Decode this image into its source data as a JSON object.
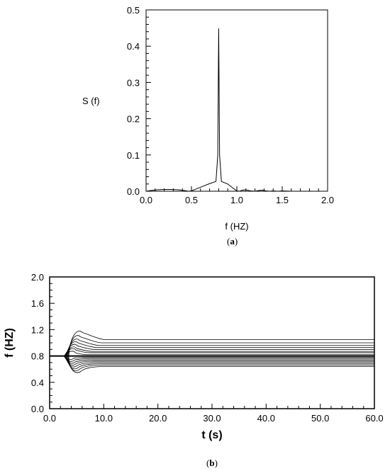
{
  "chart_data": [
    {
      "type": "line",
      "panel": "a",
      "caption_letter": "a",
      "ylabel": "S (f)",
      "xlabel": "f (HZ)",
      "xlim": [
        0.0,
        2.0
      ],
      "ylim": [
        0.0,
        0.5
      ],
      "x_ticks": [
        "0.0",
        "0.5",
        "1.0",
        "1.5",
        "2.0"
      ],
      "y_ticks": [
        "0.0",
        "0.1",
        "0.2",
        "0.3",
        "0.4",
        "0.5"
      ],
      "grid": false,
      "series": [
        {
          "x": [
            0.0,
            0.05,
            0.12,
            0.2,
            0.28,
            0.36,
            0.42,
            0.47,
            0.5,
            0.55,
            0.62,
            0.7,
            0.77,
            0.79,
            0.8,
            0.81,
            0.83,
            0.9,
            0.95,
            1.0,
            1.03,
            1.06,
            1.1,
            1.15,
            1.2,
            1.24,
            1.28,
            1.32,
            1.36,
            1.4,
            1.45,
            1.5,
            1.6,
            1.7,
            1.8,
            1.9,
            2.0
          ],
          "y": [
            0.0,
            0.002,
            0.004,
            0.005,
            0.005,
            0.004,
            0.002,
            0.0,
            0.001,
            0.006,
            0.013,
            0.021,
            0.027,
            0.1,
            0.449,
            0.1,
            0.027,
            0.02,
            0.01,
            0.001,
            0.0,
            0.003,
            0.004,
            0.001,
            0.0,
            0.002,
            0.003,
            0.001,
            0.0,
            0.001,
            0.0,
            0.001,
            0.0,
            0.0,
            0.0,
            0.0,
            0.0
          ]
        }
      ]
    },
    {
      "type": "contour",
      "panel": "b",
      "caption_letter": "b",
      "ylabel": "f (HZ)",
      "xlabel": "t (s)",
      "xlim": [
        0.0,
        60.0
      ],
      "ylim": [
        0.0,
        2.0
      ],
      "x_ticks": [
        "0.0",
        "10.0",
        "20.0",
        "30.0",
        "40.0",
        "50.0",
        "60.0"
      ],
      "y_ticks": [
        "0.0",
        "0.4",
        "0.8",
        "1.2",
        "1.6",
        "2.0"
      ],
      "reference_line_f": 0.8,
      "contour_start_t": 2.7,
      "contour_levels_f": [
        {
          "low": 0.78,
          "high": 0.82,
          "peak_t": 4.8
        },
        {
          "low": 0.76,
          "high": 0.85,
          "peak_t": 4.9
        },
        {
          "low": 0.74,
          "high": 0.87,
          "peak_t": 5.0
        },
        {
          "low": 0.72,
          "high": 0.9,
          "peak_t": 5.1
        },
        {
          "low": 0.7,
          "high": 0.93,
          "peak_t": 5.3
        },
        {
          "low": 0.68,
          "high": 0.96,
          "peak_t": 5.5
        },
        {
          "low": 0.66,
          "high": 1.0,
          "peak_t": 5.7
        },
        {
          "low": 0.64,
          "high": 1.05,
          "peak_t": 6.0
        }
      ]
    }
  ],
  "captions": {
    "a_open": "(",
    "a_letter": "a",
    "a_close": ")",
    "b_open": "(",
    "b_letter": "b",
    "b_close": ")"
  }
}
